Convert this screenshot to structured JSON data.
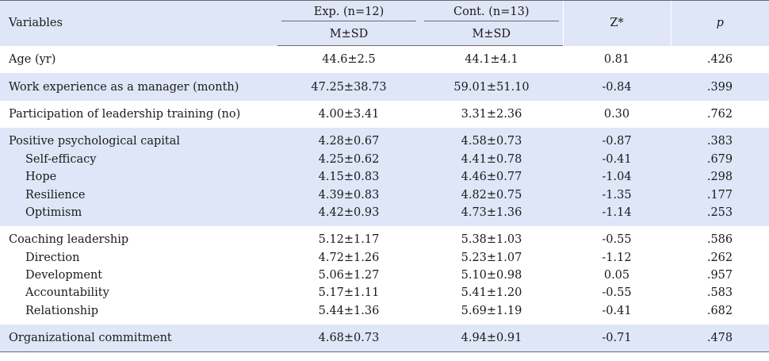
{
  "header": {
    "variables": "Variables",
    "exp": "Exp. (n=12)",
    "cont": "Cont. (n=13)",
    "msd_exp": "M±SD",
    "msd_cont": "M±SD",
    "z": "Z*",
    "p": "p"
  },
  "rows": [
    {
      "label": "Age (yr)",
      "exp": "44.6±2.5",
      "cont": "44.1±4.1",
      "z": "0.81",
      "p": ".426"
    },
    {
      "label": "Work experience as a manager (month)",
      "exp": "47.25±38.73",
      "cont": "59.01±51.10",
      "z": "-0.84",
      "p": ".399"
    },
    {
      "label": "Participation of leadership training (no)",
      "exp": "4.00±3.41",
      "cont": "3.31±2.36",
      "z": "0.30",
      "p": ".762"
    },
    {
      "label": "Positive psychological capital",
      "exp": "4.28±0.67",
      "cont": "4.58±0.73",
      "z": "-0.87",
      "p": ".383"
    },
    {
      "label": "Self-efficacy",
      "exp": "4.25±0.62",
      "cont": "4.41±0.78",
      "z": "-0.41",
      "p": ".679"
    },
    {
      "label": "Hope",
      "exp": "4.15±0.83",
      "cont": "4.46±0.77",
      "z": "-1.04",
      "p": ".298"
    },
    {
      "label": "Resilience",
      "exp": "4.39±0.83",
      "cont": "4.82±0.75",
      "z": "-1.35",
      "p": ".177"
    },
    {
      "label": "Optimism",
      "exp": "4.42±0.93",
      "cont": "4.73±1.36",
      "z": "-1.14",
      "p": ".253"
    },
    {
      "label": "Coaching leadership",
      "exp": "5.12±1.17",
      "cont": "5.38±1.03",
      "z": "-0.55",
      "p": ".586"
    },
    {
      "label": "Direction",
      "exp": "4.72±1.26",
      "cont": "5.23±1.07",
      "z": "-1.12",
      "p": ".262"
    },
    {
      "label": "Development",
      "exp": "5.06±1.27",
      "cont": "5.10±0.98",
      "z": "0.05",
      "p": ".957"
    },
    {
      "label": "Accountability",
      "exp": "5.17±1.11",
      "cont": "5.41±1.20",
      "z": "-0.55",
      "p": ".583"
    },
    {
      "label": "Relationship",
      "exp": "5.44±1.36",
      "cont": "5.69±1.19",
      "z": "-0.41",
      "p": ".682"
    },
    {
      "label": "Organizational commitment",
      "exp": "4.68±0.73",
      "cont": "4.94±0.91",
      "z": "-0.71",
      "p": ".478"
    }
  ]
}
